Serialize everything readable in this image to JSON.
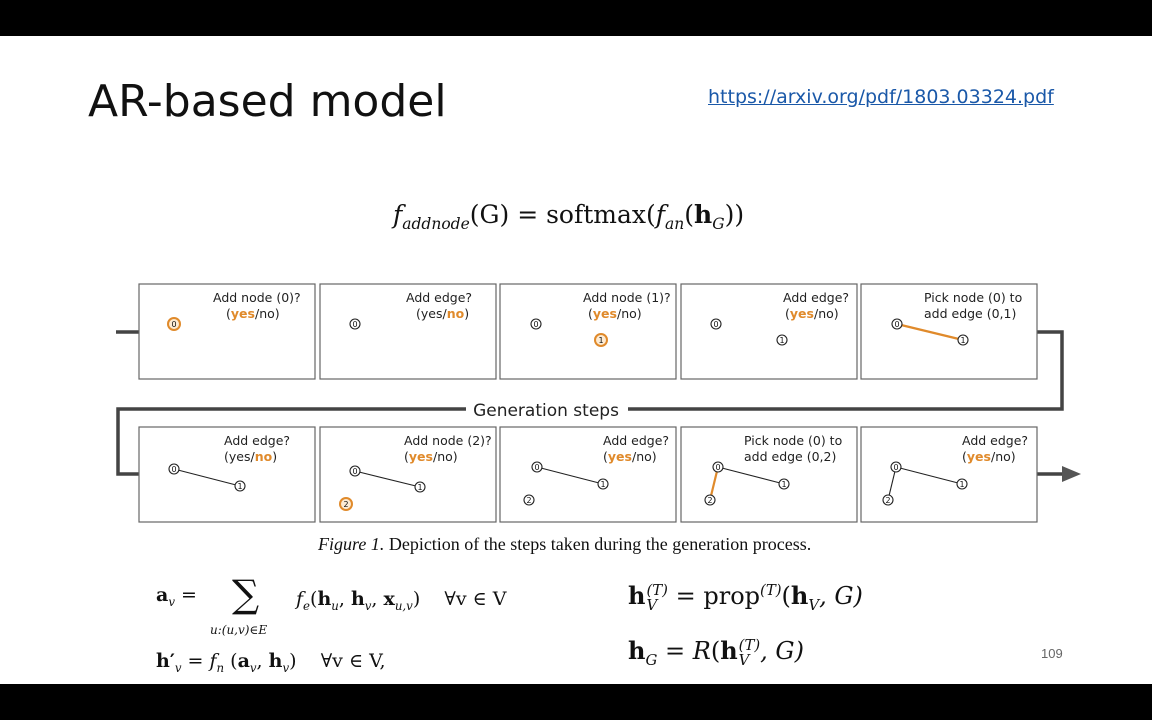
{
  "slide": {
    "title": "AR-based model",
    "link": "https://arxiv.org/pdf/1803.03324.pdf",
    "page_number": "109"
  },
  "equations": {
    "top": {
      "f": "f",
      "f_sub": "addnode",
      "lhs_rest": "(G) = softmax(",
      "f2": "f",
      "f2_sub": "an",
      "h": "h",
      "h_sub": "G",
      "tail": "))"
    },
    "a_v": {
      "lhs": "a",
      "lhs_sub": "v",
      "eq": "=",
      "sum": "∑",
      "sum_under": "u:(u,v)∈E",
      "body": "f",
      "body_sub": "e",
      "args": "(h",
      "args_u": "u",
      "comma1": ", h",
      "args_v": "v",
      "comma2": ", x",
      "args_uv": "u,v",
      "close": ")",
      "forall": "∀v ∈ V"
    },
    "h_prime": {
      "lhs": "h′",
      "lhs_sub": "v",
      "rhs": "= f",
      "rhs_sub": "n",
      "args": "(a",
      "args_v": "v",
      "comma": ", h",
      "args_v2": "v",
      "close": ")",
      "forall": "∀v ∈ V,"
    },
    "h_V": {
      "lhs": "h",
      "lhs_sub": "V",
      "lhs_sup": "(T)",
      "rhs": "= prop",
      "rhs_sup": "(T)",
      "args": "(h",
      "args_sub": "V",
      "tail": ", G)"
    },
    "h_G": {
      "lhs": "h",
      "lhs_sub": "G",
      "rhs": "= R(h",
      "rhs_sub": "V",
      "rhs_sup": "(T)",
      "tail": ", G)"
    }
  },
  "figure": {
    "caption_label": "Figure 1.",
    "caption_text": "Depiction of the steps taken during the generation process.",
    "flow_label": "Generation steps",
    "colors": {
      "highlight": "#e08a2b",
      "line": "#333333",
      "border": "#555555"
    },
    "row1": [
      {
        "line1": "Add node (0)?",
        "opt_yes": "yes",
        "opt_sep": "/",
        "opt_no": "no",
        "answer": "yes"
      },
      {
        "line1": "Add edge?",
        "opt_yes": "yes",
        "opt_sep": "/",
        "opt_no": "no",
        "answer": "no"
      },
      {
        "line1": "Add node (1)?",
        "opt_yes": "yes",
        "opt_sep": "/",
        "opt_no": "no",
        "answer": "yes"
      },
      {
        "line1": "Add edge?",
        "opt_yes": "yes",
        "opt_sep": "/",
        "opt_no": "no",
        "answer": "yes"
      },
      {
        "line1": "Pick node (0) to",
        "line2": "add edge (0,1)"
      }
    ],
    "row2": [
      {
        "line1": "Add edge?",
        "opt_yes": "yes",
        "opt_sep": "/",
        "opt_no": "no",
        "answer": "no"
      },
      {
        "line1": "Add node (2)?",
        "opt_yes": "yes",
        "opt_sep": "/",
        "opt_no": "no",
        "answer": "yes"
      },
      {
        "line1": "Add edge?",
        "opt_yes": "yes",
        "opt_sep": "/",
        "opt_no": "no",
        "answer": "yes"
      },
      {
        "line1": "Pick node (0) to",
        "line2": "add edge (0,2)"
      },
      {
        "line1": "Add edge?",
        "opt_yes": "yes",
        "opt_sep": "/",
        "opt_no": "no",
        "answer": "yes"
      }
    ],
    "node_labels": [
      "0",
      "1",
      "2"
    ]
  }
}
